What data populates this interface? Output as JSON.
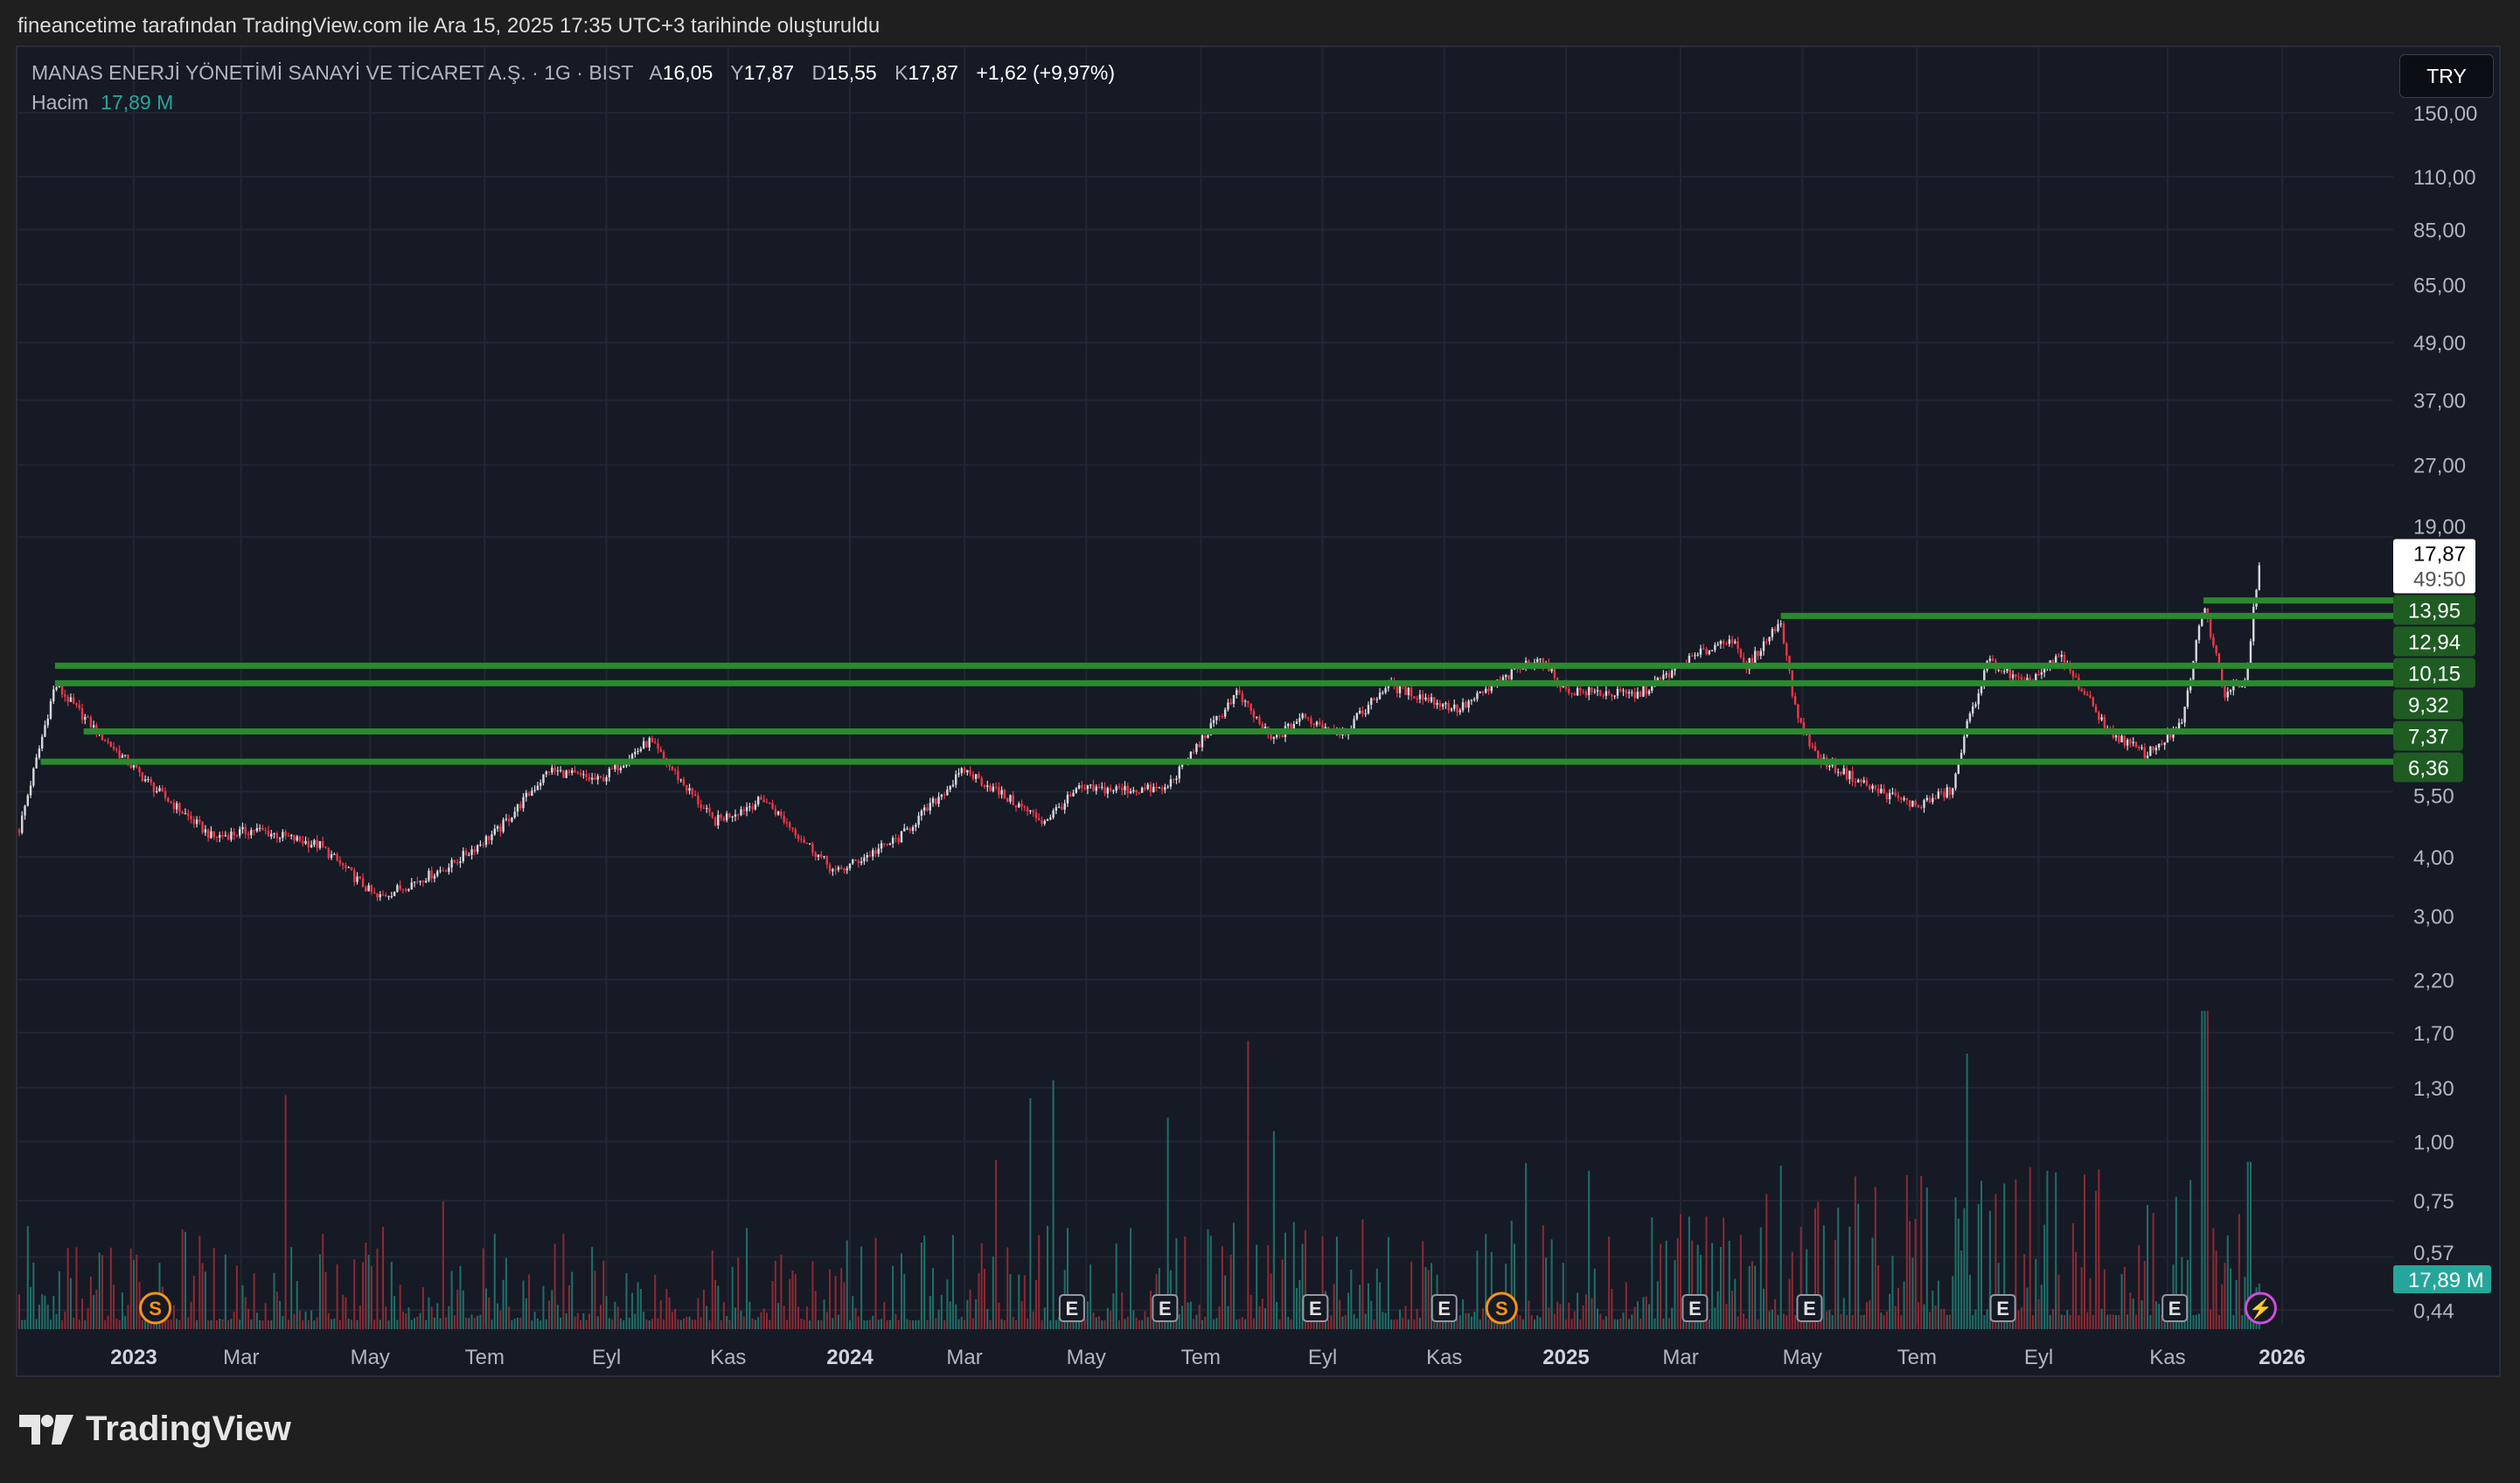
{
  "attribution": "fineancetime tarafından TradingView.com ile Ara 15, 2025 17:35 UTC+3 tarihinde oluşturuldu",
  "legend": {
    "symbol": "MANAS ENERJİ YÖNETİMİ SANAYİ VE TİCARET A.Ş. · 1G · BIST",
    "open_label": "A",
    "open": "16,05",
    "high_label": "Y",
    "high": "17,87",
    "low_label": "D",
    "low": "15,55",
    "close_label": "K",
    "close": "17,87",
    "change": "+1,62 (+9,97%)",
    "volume_label": "Hacim",
    "volume": "17,89 M"
  },
  "currency_button": "TRY",
  "logo_text": "TradingView",
  "colors": {
    "up": "#d8d9dd",
    "down": "#f23645",
    "vol_up": "#1f6f68",
    "vol_down": "#8c2a33",
    "level": "#1e5c22",
    "level_line": "#2a8a2e",
    "volume_badge": "#26a69a"
  },
  "chart_data": {
    "type": "candlestick",
    "title": "MANAS ENERJİ YÖNETİMİ SANAYİ VE TİCARET A.Ş. · 1G · BIST",
    "yscale": "log",
    "ylim": [
      0.42,
      165
    ],
    "xlim_year": [
      2022.82,
      2026.18
    ],
    "price_ticks": [
      "150,00",
      "110,00",
      "85,00",
      "65,00",
      "49,00",
      "37,00",
      "27,00",
      "19,00",
      "5,50",
      "4,00",
      "3,00",
      "2,20",
      "1,70",
      "1,30",
      "1,00",
      "0,75",
      "0,57",
      "0,44"
    ],
    "price_tick_values": [
      150,
      110,
      85,
      65,
      49,
      37,
      27,
      19,
      5.5,
      4,
      3,
      2.2,
      1.7,
      1.3,
      1.0,
      0.75,
      0.57,
      0.44
    ],
    "time_ticks": [
      {
        "label": "2023",
        "year": 2023.0,
        "bold": true
      },
      {
        "label": "Mar",
        "year": 2023.15
      },
      {
        "label": "May",
        "year": 2023.33
      },
      {
        "label": "Tem",
        "year": 2023.49
      },
      {
        "label": "Eyl",
        "year": 2023.66
      },
      {
        "label": "Kas",
        "year": 2023.83
      },
      {
        "label": "2024",
        "year": 2024.0,
        "bold": true
      },
      {
        "label": "Mar",
        "year": 2024.16
      },
      {
        "label": "May",
        "year": 2024.33
      },
      {
        "label": "Tem",
        "year": 2024.49
      },
      {
        "label": "Eyl",
        "year": 2024.66
      },
      {
        "label": "Kas",
        "year": 2024.83
      },
      {
        "label": "2025",
        "year": 2025.0,
        "bold": true
      },
      {
        "label": "Mar",
        "year": 2025.16
      },
      {
        "label": "May",
        "year": 2025.33
      },
      {
        "label": "Tem",
        "year": 2025.49
      },
      {
        "label": "Eyl",
        "year": 2025.66
      },
      {
        "label": "Kas",
        "year": 2025.84
      },
      {
        "label": "2026",
        "year": 2026.0,
        "bold": true
      }
    ],
    "price_path": [
      [
        2022.84,
        4.57
      ],
      [
        2022.89,
        9.25
      ],
      [
        2022.95,
        7.33
      ],
      [
        2023.03,
        5.56
      ],
      [
        2023.11,
        4.4
      ],
      [
        2023.17,
        4.57
      ],
      [
        2023.26,
        4.23
      ],
      [
        2023.34,
        3.27
      ],
      [
        2023.44,
        3.82
      ],
      [
        2023.51,
        4.57
      ],
      [
        2023.58,
        6.11
      ],
      [
        2023.65,
        5.8
      ],
      [
        2023.72,
        7.03
      ],
      [
        2023.81,
        4.75
      ],
      [
        2023.88,
        5.3
      ],
      [
        2023.98,
        3.7
      ],
      [
        2024.07,
        4.4
      ],
      [
        2024.16,
        6.11
      ],
      [
        2024.27,
        4.75
      ],
      [
        2024.32,
        5.56
      ],
      [
        2024.44,
        5.56
      ],
      [
        2024.49,
        7.03
      ],
      [
        2024.54,
        8.9
      ],
      [
        2024.59,
        7.03
      ],
      [
        2024.63,
        7.9
      ],
      [
        2024.69,
        7.33
      ],
      [
        2024.75,
        9.25
      ],
      [
        2024.85,
        8.2
      ],
      [
        2024.96,
        10.6
      ],
      [
        2025.0,
        9.0
      ],
      [
        2025.1,
        8.8
      ],
      [
        2025.17,
        10.4
      ],
      [
        2025.23,
        11.7
      ],
      [
        2025.25,
        10.0
      ],
      [
        2025.3,
        12.65
      ],
      [
        2025.32,
        8.2
      ],
      [
        2025.35,
        6.5
      ],
      [
        2025.43,
        5.56
      ],
      [
        2025.49,
        5.13
      ],
      [
        2025.54,
        5.56
      ],
      [
        2025.56,
        7.6
      ],
      [
        2025.59,
        10.4
      ],
      [
        2025.64,
        9.25
      ],
      [
        2025.69,
        10.6
      ],
      [
        2025.76,
        7.33
      ],
      [
        2025.81,
        6.6
      ],
      [
        2025.86,
        7.6
      ],
      [
        2025.89,
        13.7
      ],
      [
        2025.92,
        8.9
      ],
      [
        2025.95,
        9.6
      ],
      [
        2025.96,
        13.4
      ],
      [
        2025.97,
        17.87
      ]
    ],
    "levels": [
      {
        "value": 13.95,
        "label": "13,95",
        "from_year": 2025.89
      },
      {
        "value": 12.94,
        "label": "12,94",
        "from_year": 2025.3
      },
      {
        "value": 10.15,
        "label": "10,15",
        "from_year": 2022.89
      },
      {
        "value": 9.32,
        "label": "9,32",
        "from_year": 2022.89
      },
      {
        "value": 7.37,
        "label": "7,37",
        "from_year": 2022.93
      },
      {
        "value": 6.36,
        "label": "6,36",
        "from_year": 2022.87
      }
    ],
    "last_price": {
      "value": 17.87,
      "label": "17,87",
      "countdown": "49:50"
    },
    "volume_last": "17,89 M",
    "events": [
      {
        "type": "S",
        "year": 2023.03,
        "color": "#f7931a"
      },
      {
        "type": "E",
        "year": 2024.31,
        "color": "#9598a1"
      },
      {
        "type": "E",
        "year": 2024.44,
        "color": "#9598a1"
      },
      {
        "type": "E",
        "year": 2024.65,
        "color": "#9598a1"
      },
      {
        "type": "E",
        "year": 2024.83,
        "color": "#9598a1"
      },
      {
        "type": "S",
        "year": 2024.91,
        "color": "#f7931a"
      },
      {
        "type": "E",
        "year": 2025.18,
        "color": "#9598a1"
      },
      {
        "type": "E",
        "year": 2025.34,
        "color": "#9598a1"
      },
      {
        "type": "E",
        "year": 2025.61,
        "color": "#9598a1"
      },
      {
        "type": "E",
        "year": 2025.85,
        "color": "#9598a1"
      },
      {
        "type": "⚡",
        "year": 2025.97,
        "color": "#d34bd8"
      }
    ]
  }
}
